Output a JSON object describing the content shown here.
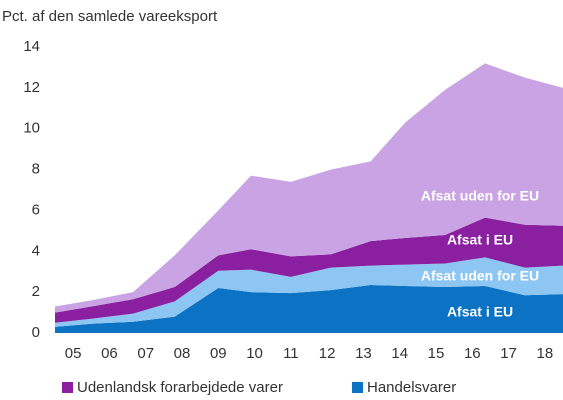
{
  "chart_data": {
    "type": "stacked-area",
    "title": "Pct. af den samlede vareeksport",
    "x": [
      2004.5,
      2005.5,
      2006.65,
      2007.8,
      2009.0,
      2009.9,
      2011.0,
      2012.1,
      2013.2,
      2014.15,
      2015.25,
      2016.35,
      2017.45,
      2018.5
    ],
    "xlim": [
      2004.5,
      2018.5
    ],
    "xticks": [
      {
        "value": 2005,
        "label": "05"
      },
      {
        "value": 2006,
        "label": "06"
      },
      {
        "value": 2007,
        "label": "07"
      },
      {
        "value": 2008,
        "label": "08"
      },
      {
        "value": 2009,
        "label": "09"
      },
      {
        "value": 2010,
        "label": "10"
      },
      {
        "value": 2011,
        "label": "11"
      },
      {
        "value": 2012,
        "label": "12"
      },
      {
        "value": 2013,
        "label": "13"
      },
      {
        "value": 2014,
        "label": "14"
      },
      {
        "value": 2015,
        "label": "15"
      },
      {
        "value": 2016,
        "label": "16"
      },
      {
        "value": 2017,
        "label": "17"
      },
      {
        "value": 2018,
        "label": "18"
      }
    ],
    "ylim": [
      0,
      14
    ],
    "yticks": [
      0,
      2,
      4,
      6,
      8,
      10,
      12,
      14
    ],
    "series": [
      {
        "name": "Afsat i EU",
        "color": "#0b72c4",
        "values": [
          0.3,
          0.45,
          0.55,
          0.8,
          2.2,
          2.0,
          1.95,
          2.1,
          2.35,
          2.3,
          2.25,
          2.3,
          1.85,
          1.9
        ]
      },
      {
        "name": "Afsat uden for EU",
        "color": "#8ec6f3",
        "values": [
          0.2,
          0.25,
          0.4,
          0.75,
          0.85,
          1.1,
          0.8,
          1.1,
          0.95,
          1.05,
          1.15,
          1.4,
          1.35,
          1.4
        ]
      },
      {
        "name": "Afsat i EU",
        "color": "#8a1fa0",
        "values": [
          0.5,
          0.6,
          0.7,
          0.7,
          0.75,
          1.0,
          1.0,
          0.65,
          1.2,
          1.3,
          1.4,
          1.95,
          2.1,
          1.95
        ]
      },
      {
        "name": "Afsat uden for EU",
        "color": "#c9a3e3",
        "values": [
          0.3,
          0.3,
          0.35,
          1.55,
          2.2,
          3.6,
          3.65,
          4.15,
          3.9,
          5.65,
          7.1,
          7.55,
          7.2,
          6.75
        ]
      }
    ],
    "legend": [
      {
        "name": "Udenlandsk forarbejdede varer",
        "color": "#8a1fa0"
      },
      {
        "name": "Handelsvarer",
        "color": "#0b72c4"
      }
    ]
  }
}
